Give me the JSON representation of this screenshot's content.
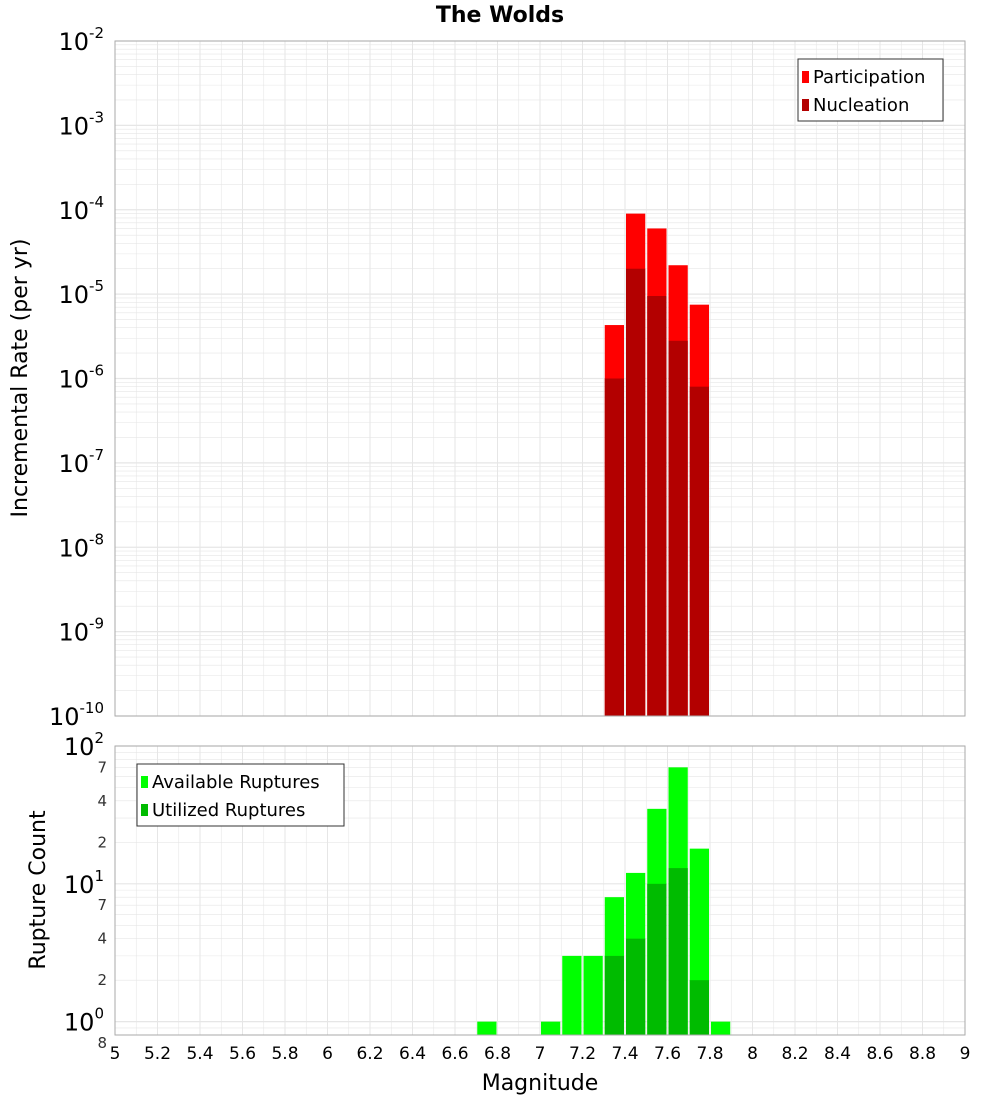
{
  "title": "The Wolds",
  "colors": {
    "participation": "#ff0000",
    "nucleation": "#b30000",
    "available": "#00ff00",
    "utilized": "#00bb00",
    "grid": "#e6e6e6",
    "frame": "#aaaaaa"
  },
  "chart_data": [
    {
      "type": "bar",
      "name": "rate-panel",
      "title": "The Wolds",
      "xlabel": "Magnitude",
      "ylabel": "Incremental Rate (per yr)",
      "yscale": "log",
      "xlim": [
        5,
        9
      ],
      "ylim": [
        1e-10,
        0.01
      ],
      "y_ticks": [
        {
          "base": "10",
          "exp": "-10",
          "value": 1e-10
        },
        {
          "base": "10",
          "exp": "-9",
          "value": 1e-09
        },
        {
          "base": "10",
          "exp": "-8",
          "value": 1e-08
        },
        {
          "base": "10",
          "exp": "-7",
          "value": 1e-07
        },
        {
          "base": "10",
          "exp": "-6",
          "value": 1e-06
        },
        {
          "base": "10",
          "exp": "-5",
          "value": 1e-05
        },
        {
          "base": "10",
          "exp": "-4",
          "value": 0.0001
        },
        {
          "base": "10",
          "exp": "-3",
          "value": 0.001
        },
        {
          "base": "10",
          "exp": "-2",
          "value": 0.01
        }
      ],
      "bin_width": 0.1,
      "legend": {
        "position": "top-right",
        "entries": [
          "Participation",
          "Nucleation"
        ]
      },
      "series": [
        {
          "name": "Participation",
          "color_key": "participation",
          "x": [
            7.35,
            7.45,
            7.55,
            7.65,
            7.75
          ],
          "values": [
            4.3e-06,
            9e-05,
            6e-05,
            2.2e-05,
            7.5e-06
          ]
        },
        {
          "name": "Nucleation",
          "color_key": "nucleation",
          "x": [
            7.35,
            7.45,
            7.55,
            7.65,
            7.75
          ],
          "values": [
            1e-06,
            2e-05,
            9.5e-06,
            2.8e-06,
            8e-07
          ]
        }
      ]
    },
    {
      "type": "bar",
      "name": "count-panel",
      "xlabel": "Magnitude",
      "ylabel": "Rupture Count",
      "yscale": "log",
      "xlim": [
        5,
        9
      ],
      "ylim": [
        0.8,
        100
      ],
      "y_ticks": [
        {
          "base": "10",
          "exp": "0",
          "value": 1
        },
        {
          "base": "10",
          "exp": "1",
          "value": 10
        },
        {
          "base": "10",
          "exp": "2",
          "value": 100
        }
      ],
      "y_minor_ticks": [
        {
          "label": "8",
          "value": 0.8
        },
        {
          "label": "2",
          "value": 2
        },
        {
          "label": "4",
          "value": 4
        },
        {
          "label": "7",
          "value": 7
        },
        {
          "label": "2",
          "value": 20
        },
        {
          "label": "4",
          "value": 40
        },
        {
          "label": "7",
          "value": 70
        }
      ],
      "bin_width": 0.1,
      "legend": {
        "position": "top-left",
        "entries": [
          "Available Ruptures",
          "Utilized Ruptures"
        ]
      },
      "series": [
        {
          "name": "Available Ruptures",
          "color_key": "available",
          "x": [
            6.75,
            7.05,
            7.15,
            7.25,
            7.35,
            7.45,
            7.55,
            7.65,
            7.75,
            7.85
          ],
          "values": [
            1,
            1,
            3,
            3,
            8,
            12,
            35,
            70,
            18,
            1
          ]
        },
        {
          "name": "Utilized Ruptures",
          "color_key": "utilized",
          "x": [
            7.35,
            7.45,
            7.55,
            7.65,
            7.75
          ],
          "values": [
            3,
            4,
            10,
            13,
            2
          ]
        }
      ]
    }
  ],
  "x_ticks": [
    "5",
    "5.2",
    "5.4",
    "5.6",
    "5.8",
    "6",
    "6.2",
    "6.4",
    "6.6",
    "6.8",
    "7",
    "7.2",
    "7.4",
    "7.6",
    "7.8",
    "8",
    "8.2",
    "8.4",
    "8.6",
    "8.8",
    "9"
  ]
}
